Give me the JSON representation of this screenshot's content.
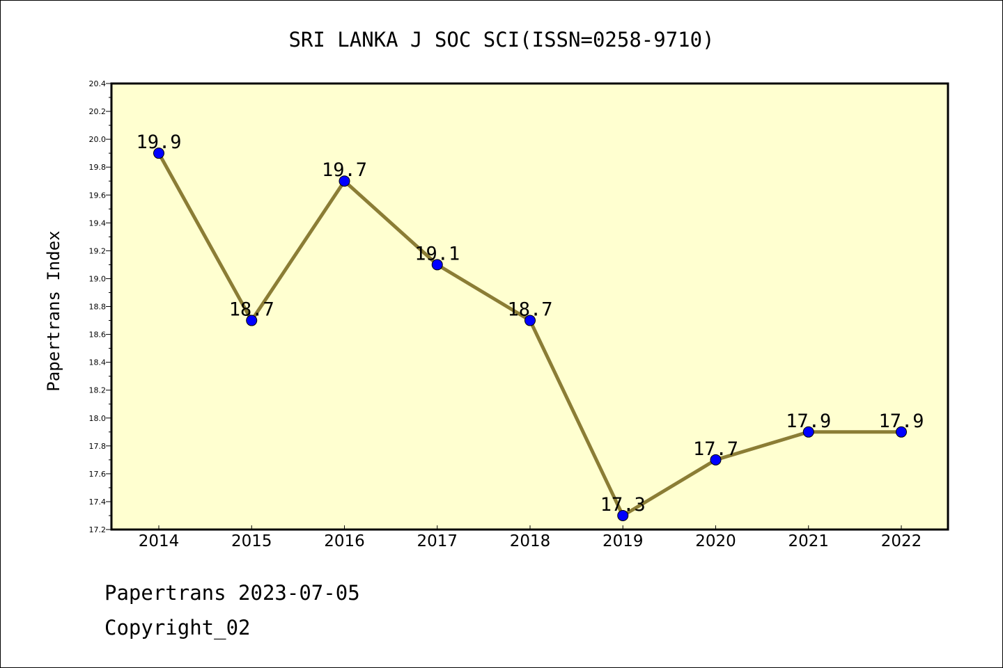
{
  "chart_data": {
    "type": "line",
    "title": "SRI LANKA J SOC SCI(ISSN=0258-9710)",
    "ylabel": "Papertrans Index",
    "xlabel": "",
    "x": [
      "2014",
      "2015",
      "2016",
      "2017",
      "2018",
      "2019",
      "2020",
      "2021",
      "2022"
    ],
    "series": [
      {
        "values": [
          19.9,
          18.7,
          19.7,
          19.1,
          18.7,
          17.3,
          17.7,
          17.9,
          17.9
        ],
        "labels": [
          "19.9",
          "18.7",
          "19.7",
          "19.1",
          "18.7",
          "17.3",
          "17.7",
          "17.9",
          "17.9"
        ],
        "line_color": "#8b7d35",
        "marker_color": "#0000ff"
      }
    ],
    "ylim": [
      17.2,
      20.4
    ],
    "yticks": [
      "17.2",
      "17.4",
      "17.6",
      "17.8",
      "18.0",
      "18.2",
      "18.4",
      "18.6",
      "18.8",
      "19.0",
      "19.2",
      "19.4",
      "19.6",
      "19.8",
      "20.0",
      "20.2",
      "20.4"
    ],
    "grid": false,
    "legend": "none",
    "plot_background": "#ffffd0"
  },
  "footer": {
    "date_line": "Papertrans 2023-07-05",
    "copyright": "Copyright_02"
  }
}
